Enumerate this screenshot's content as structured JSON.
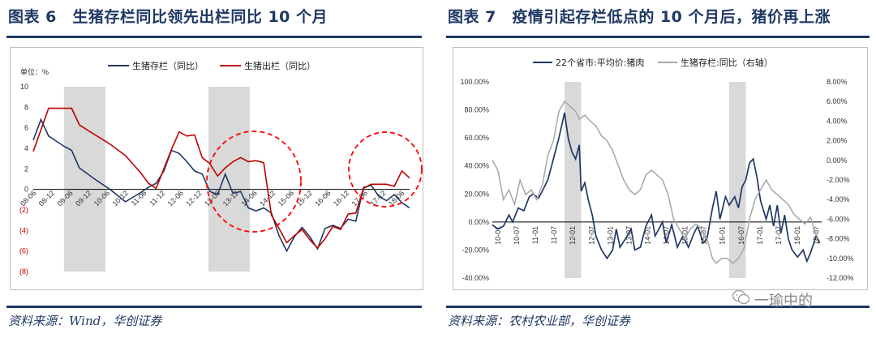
{
  "left_figure": {
    "title": "图表 6　生猪存栏同比领先出栏同比 10 个月",
    "source": "资料来源：Wind，华创证券"
  },
  "right_figure": {
    "title": "图表 7　疫情引起存栏低点的 10 个月后，猪价再上涨",
    "source": "资料来源：农村农业部，华创证券"
  },
  "watermark": "一瑜中的",
  "colors": {
    "navy": "#1f3864",
    "red": "#c00000",
    "gray": "#a6a6a6",
    "shade": "#d9d9d9",
    "highlight": "#ff0000"
  },
  "chart_data": [
    {
      "type": "line",
      "unit_label": "单位：%",
      "ylim": [
        -8,
        10
      ],
      "yticks": [
        "10",
        "8",
        "6",
        "4",
        "2",
        "0",
        "(2)",
        "(4)",
        "(6)",
        "(8)"
      ],
      "xticks": [
        "08-06",
        "08-12",
        "09-06",
        "09-12",
        "10-06",
        "10-12",
        "11-06",
        "11-12",
        "12-06",
        "12-12",
        "13-06",
        "13-12",
        "14-06",
        "14-12",
        "15-06",
        "15-12",
        "16-06",
        "16-12",
        "17-06",
        "17-12",
        "18-06"
      ],
      "shaded_periods": [
        [
          2.0,
          4.7
        ],
        [
          11.4,
          14.1
        ]
      ],
      "highlight_circles": [
        "13-06 至 15-06",
        "17-06 至 18-06"
      ],
      "series": [
        {
          "name": "生猪存栏（同比）",
          "color": "#1f3864",
          "points": [
            [
              0,
              4.8
            ],
            [
              0.5,
              6.8
            ],
            [
              1,
              5.2
            ],
            [
              2,
              4.2
            ],
            [
              2.5,
              3.8
            ],
            [
              3,
              2.1
            ],
            [
              4,
              1.0
            ],
            [
              5,
              0
            ],
            [
              6,
              -1.2
            ],
            [
              7,
              -0.3
            ],
            [
              7.5,
              0.2
            ],
            [
              8,
              0.6
            ],
            [
              8.5,
              1.8
            ],
            [
              9,
              3.8
            ],
            [
              9.5,
              3.5
            ],
            [
              10,
              2.7
            ],
            [
              10.5,
              1.8
            ],
            [
              11,
              1.5
            ],
            [
              11.5,
              -0.2
            ],
            [
              12,
              -0.5
            ],
            [
              12.5,
              1.5
            ],
            [
              13,
              -0.4
            ],
            [
              13.5,
              -0.2
            ],
            [
              14,
              -1.8
            ],
            [
              14.5,
              -2.1
            ],
            [
              15,
              -1.8
            ],
            [
              15.5,
              -2.3
            ],
            [
              16,
              -4.5
            ],
            [
              16.5,
              -6.0
            ],
            [
              17,
              -4.6
            ],
            [
              17.5,
              -3.7
            ],
            [
              18,
              -4.6
            ],
            [
              18.5,
              -5.8
            ],
            [
              19,
              -3.8
            ],
            [
              19.5,
              -3.5
            ],
            [
              20,
              -3.8
            ],
            [
              20.5,
              -2.9
            ],
            [
              21,
              -3.1
            ],
            [
              21.5,
              0.2
            ],
            [
              22,
              0.4
            ],
            [
              22.5,
              -0.7
            ],
            [
              23,
              -1.1
            ],
            [
              23.5,
              -0.5
            ],
            [
              24,
              -1.3
            ],
            [
              24.5,
              -1.8
            ]
          ]
        },
        {
          "name": "生猪出栏（同比）",
          "color": "#c00000",
          "points": [
            [
              0,
              3.7
            ],
            [
              1,
              7.9
            ],
            [
              2,
              7.9
            ],
            [
              2.5,
              7.9
            ],
            [
              3,
              6.3
            ],
            [
              3.5,
              5.8
            ],
            [
              5,
              4.4
            ],
            [
              6,
              3.3
            ],
            [
              7,
              1.6
            ],
            [
              7.5,
              0.6
            ],
            [
              8,
              0.1
            ],
            [
              9,
              3.9
            ],
            [
              9.5,
              5.6
            ],
            [
              10,
              5.2
            ],
            [
              10.5,
              5.3
            ],
            [
              11,
              3.1
            ],
            [
              11.5,
              2.5
            ],
            [
              12,
              1.3
            ],
            [
              12.5,
              2.1
            ],
            [
              13,
              2.7
            ],
            [
              13.5,
              3.1
            ],
            [
              14,
              2.7
            ],
            [
              14.5,
              2.8
            ],
            [
              15,
              2.6
            ],
            [
              15.5,
              -2.5
            ],
            [
              16,
              -3.8
            ],
            [
              16.5,
              -5.2
            ],
            [
              17,
              -4.5
            ],
            [
              17.5,
              -3.9
            ],
            [
              18,
              -4.9
            ],
            [
              18.5,
              -5.7
            ],
            [
              19,
              -4.8
            ],
            [
              19.5,
              -3.6
            ],
            [
              20,
              -3.9
            ],
            [
              20.5,
              -2.4
            ],
            [
              21,
              -2.3
            ],
            [
              21.5,
              0.1
            ],
            [
              22,
              0.5
            ],
            [
              22.5,
              0.5
            ],
            [
              23,
              0.5
            ],
            [
              23.5,
              0.3
            ],
            [
              24,
              1.8
            ],
            [
              24.5,
              1.1
            ]
          ]
        }
      ]
    },
    {
      "type": "line",
      "y_left_lim": [
        -40,
        100
      ],
      "y_right_lim": [
        -12,
        8
      ],
      "y_left_ticks": [
        "100.00%",
        "80.00%",
        "60.00%",
        "40.00%",
        "20.00%",
        "0.00%",
        "-20.00%",
        "-40.00%"
      ],
      "y_right_ticks": [
        "8.00%",
        "6.00%",
        "4.00%",
        "2.00%",
        "0.00%",
        "-2.00%",
        "-4.00%",
        "-6.00%",
        "-8.00%",
        "-10.00%",
        "-12.00%"
      ],
      "xticks": [
        "10-01",
        "10-07",
        "11-01",
        "11-07",
        "12-01",
        "12-07",
        "13-01",
        "13-07",
        "14-01",
        "14-07",
        "15-01",
        "15-07",
        "16-01",
        "16-07",
        "17-01",
        "17-07",
        "18-01",
        "18-07"
      ],
      "shaded_periods": [
        [
          3.9,
          4.8
        ],
        [
          12.8,
          13.7
        ]
      ],
      "series": [
        {
          "name": "22个省市:平均价:猪肉",
          "axis": "left",
          "color": "#1f3864",
          "points": [
            [
              0,
              -2
            ],
            [
              0.3,
              -5
            ],
            [
              0.6,
              -3
            ],
            [
              0.9,
              5
            ],
            [
              1.1,
              0
            ],
            [
              1.4,
              10
            ],
            [
              1.7,
              8
            ],
            [
              2,
              18
            ],
            [
              2.2,
              20
            ],
            [
              2.5,
              17
            ],
            [
              2.7,
              22
            ],
            [
              3,
              30
            ],
            [
              3.3,
              45
            ],
            [
              3.6,
              60
            ],
            [
              3.9,
              78
            ],
            [
              4.1,
              60
            ],
            [
              4.3,
              50
            ],
            [
              4.5,
              45
            ],
            [
              4.7,
              55
            ],
            [
              4.8,
              22
            ],
            [
              5,
              28
            ],
            [
              5.2,
              15
            ],
            [
              5.4,
              5
            ],
            [
              5.6,
              -10
            ],
            [
              5.9,
              -20
            ],
            [
              6.2,
              -26
            ],
            [
              6.5,
              -20
            ],
            [
              6.7,
              -5
            ],
            [
              6.9,
              -18
            ],
            [
              7.2,
              -12
            ],
            [
              7.5,
              -5
            ],
            [
              7.7,
              -20
            ],
            [
              8,
              -18
            ],
            [
              8.3,
              -3
            ],
            [
              8.6,
              5
            ],
            [
              8.8,
              -10
            ],
            [
              9,
              -5
            ],
            [
              9.2,
              0
            ],
            [
              9.4,
              -15
            ],
            [
              9.7,
              -2
            ],
            [
              10,
              -18
            ],
            [
              10.3,
              -10
            ],
            [
              10.6,
              -18
            ],
            [
              10.9,
              -8
            ],
            [
              11.1,
              -3
            ],
            [
              11.4,
              -15
            ],
            [
              11.6,
              -12
            ],
            [
              11.9,
              10
            ],
            [
              12.1,
              22
            ],
            [
              12.3,
              2
            ],
            [
              12.6,
              18
            ],
            [
              12.8,
              12
            ],
            [
              13.1,
              18
            ],
            [
              13.3,
              10
            ],
            [
              13.5,
              25
            ],
            [
              13.7,
              30
            ],
            [
              13.9,
              42
            ],
            [
              14.1,
              45
            ],
            [
              14.3,
              32
            ],
            [
              14.5,
              15
            ],
            [
              14.8,
              2
            ],
            [
              15,
              12
            ],
            [
              15.2,
              -3
            ],
            [
              15.4,
              12
            ],
            [
              15.6,
              -8
            ],
            [
              15.8,
              5
            ],
            [
              16,
              -12
            ],
            [
              16.2,
              -20
            ],
            [
              16.5,
              -25
            ],
            [
              16.8,
              -20
            ],
            [
              17,
              -28
            ],
            [
              17.2,
              -22
            ],
            [
              17.5,
              -10
            ],
            [
              17.7,
              -15
            ]
          ]
        },
        {
          "name": "生猪存栏:同比（右轴）",
          "axis": "right",
          "color": "#a6a6a6",
          "points": [
            [
              0,
              0
            ],
            [
              0.3,
              -1
            ],
            [
              0.6,
              -4
            ],
            [
              0.9,
              -3
            ],
            [
              1.2,
              -4.5
            ],
            [
              1.5,
              -2
            ],
            [
              1.8,
              -3.5
            ],
            [
              2.1,
              -3
            ],
            [
              2.4,
              -4
            ],
            [
              2.7,
              -2.5
            ],
            [
              3,
              0.5
            ],
            [
              3.3,
              2
            ],
            [
              3.6,
              5
            ],
            [
              3.9,
              6
            ],
            [
              4.2,
              5.5
            ],
            [
              4.5,
              5
            ],
            [
              4.7,
              4.2
            ],
            [
              5,
              4.6
            ],
            [
              5.3,
              4
            ],
            [
              5.6,
              3.5
            ],
            [
              5.9,
              2.5
            ],
            [
              6.2,
              2
            ],
            [
              6.5,
              1
            ],
            [
              6.8,
              -0.5
            ],
            [
              7.1,
              -2
            ],
            [
              7.4,
              -3
            ],
            [
              7.7,
              -3.5
            ],
            [
              8,
              -3
            ],
            [
              8.3,
              -1.5
            ],
            [
              8.6,
              -1
            ],
            [
              8.9,
              -1.5
            ],
            [
              9.2,
              -2
            ],
            [
              9.5,
              -3.5
            ],
            [
              9.8,
              -6
            ],
            [
              10.1,
              -7
            ],
            [
              10.4,
              -8
            ],
            [
              10.7,
              -7
            ],
            [
              11,
              -6.5
            ],
            [
              11.3,
              -7
            ],
            [
              11.6,
              -8
            ],
            [
              11.9,
              -10
            ],
            [
              12.1,
              -10.5
            ],
            [
              12.4,
              -10
            ],
            [
              12.7,
              -10
            ],
            [
              13,
              -10.5
            ],
            [
              13.3,
              -10
            ],
            [
              13.6,
              -9
            ],
            [
              13.9,
              -6
            ],
            [
              14.2,
              -4
            ],
            [
              14.5,
              -3
            ],
            [
              14.8,
              -2
            ],
            [
              15.1,
              -3
            ],
            [
              15.4,
              -3.5
            ],
            [
              15.7,
              -4
            ],
            [
              16,
              -4.5
            ],
            [
              16.3,
              -5.5
            ],
            [
              16.6,
              -6
            ],
            [
              16.9,
              -6.5
            ],
            [
              17.2,
              -5.8
            ],
            [
              17.4,
              -7
            ],
            [
              17.6,
              -8
            ]
          ]
        }
      ]
    }
  ]
}
